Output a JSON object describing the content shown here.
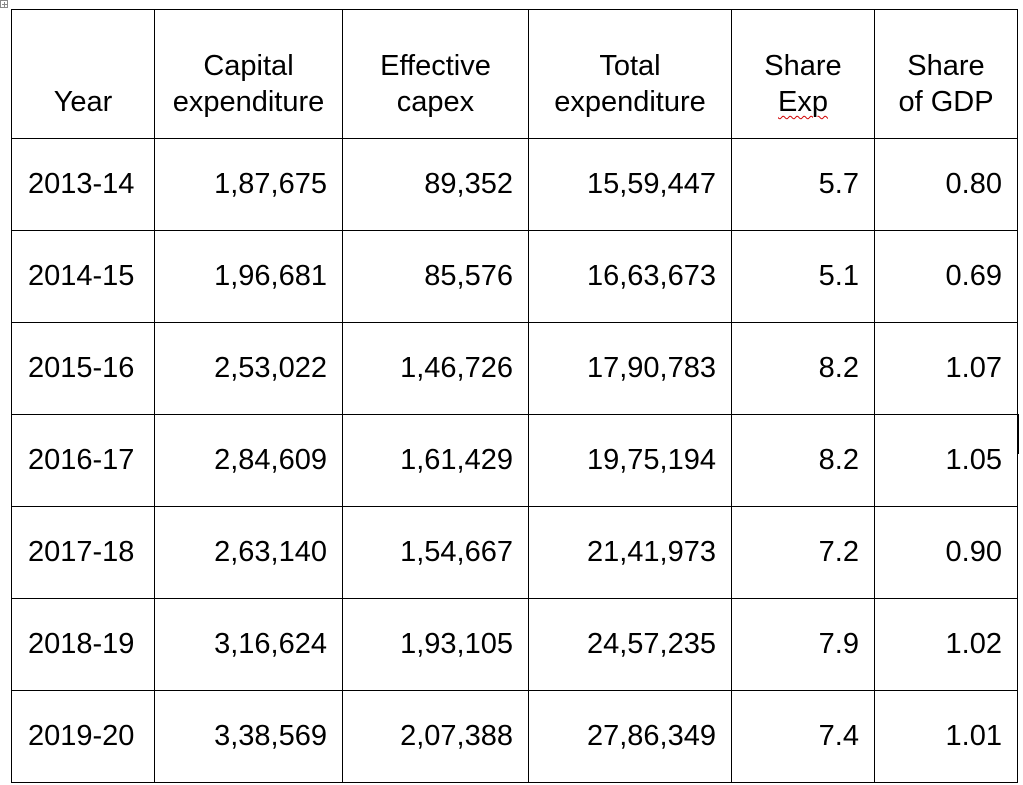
{
  "table": {
    "headers": [
      {
        "line1": "",
        "line2": "Year"
      },
      {
        "line1": "Capital",
        "line2": "expenditure"
      },
      {
        "line1": "Effective",
        "line2": "capex"
      },
      {
        "line1": "Total",
        "line2": "expenditure"
      },
      {
        "line1": "Share",
        "line2": "Exp"
      },
      {
        "line1": "Share",
        "line2": "of GDP"
      }
    ],
    "rows": [
      {
        "year": "2013-14",
        "capital_expenditure": "1,87,675",
        "effective_capex": "89,352",
        "total_expenditure": "15,59,447",
        "share_exp": "5.7",
        "share_gdp": "0.80"
      },
      {
        "year": "2014-15",
        "capital_expenditure": "1,96,681",
        "effective_capex": "85,576",
        "total_expenditure": "16,63,673",
        "share_exp": "5.1",
        "share_gdp": "0.69"
      },
      {
        "year": "2015-16",
        "capital_expenditure": "2,53,022",
        "effective_capex": "1,46,726",
        "total_expenditure": "17,90,783",
        "share_exp": "8.2",
        "share_gdp": "1.07"
      },
      {
        "year": "2016-17",
        "capital_expenditure": "2,84,609",
        "effective_capex": "1,61,429",
        "total_expenditure": "19,75,194",
        "share_exp": "8.2",
        "share_gdp": "1.05"
      },
      {
        "year": "2017-18",
        "capital_expenditure": "2,63,140",
        "effective_capex": "1,54,667",
        "total_expenditure": "21,41,973",
        "share_exp": "7.2",
        "share_gdp": "0.90"
      },
      {
        "year": "2018-19",
        "capital_expenditure": "3,16,624",
        "effective_capex": "1,93,105",
        "total_expenditure": "24,57,235",
        "share_exp": "7.9",
        "share_gdp": "1.02"
      },
      {
        "year": "2019-20",
        "capital_expenditure": "3,38,569",
        "effective_capex": "2,07,388",
        "total_expenditure": "27,86,349",
        "share_exp": "7.4",
        "share_gdp": "1.01"
      }
    ]
  },
  "icons": {
    "table_move_handle": "table-move-handle-icon"
  },
  "colors": {
    "spellcheck_underline": "#d00000",
    "grid_lines": "#000000"
  }
}
